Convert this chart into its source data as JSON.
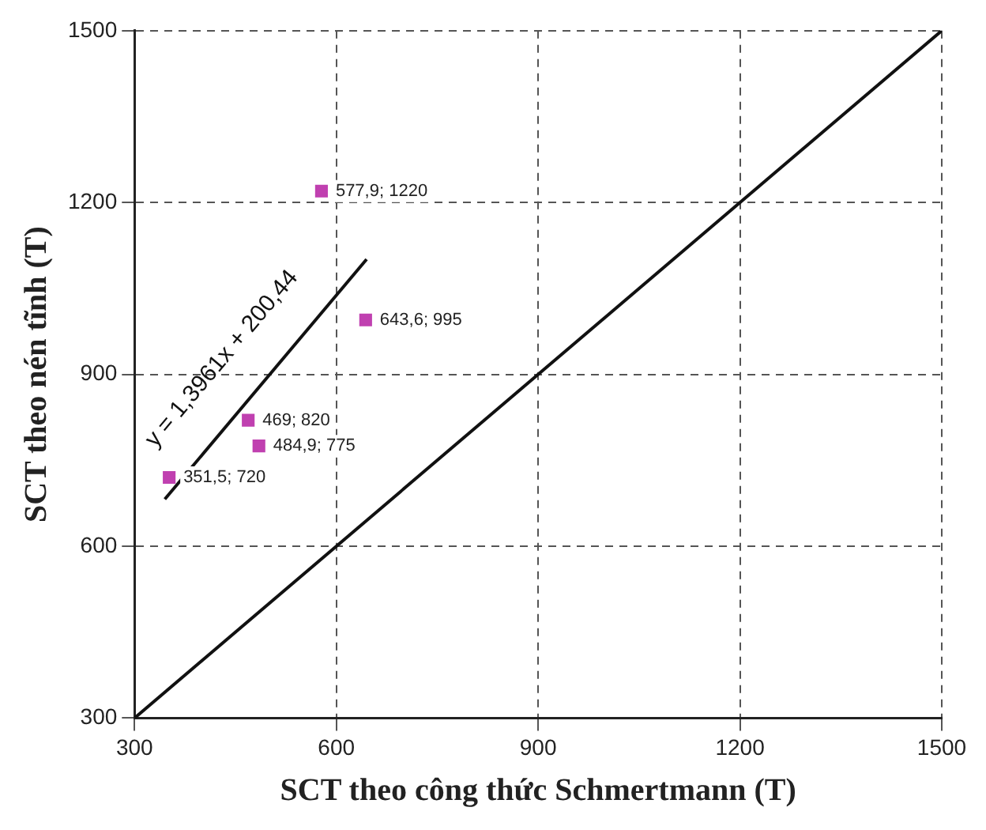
{
  "chart_data": {
    "type": "scatter",
    "xlabel": "SCT theo công thức Schmertmann (T)",
    "ylabel": "SCT theo nén tĩnh (T)",
    "xlim": [
      300,
      1500
    ],
    "xticks": [
      300,
      600,
      900,
      1200,
      1500
    ],
    "ylim": [
      300,
      1500
    ],
    "yticks": [
      300,
      600,
      900,
      1200,
      1500
    ],
    "grid": true,
    "series": [
      {
        "marker": "square",
        "color": "#c040b0",
        "x": [
          351.5,
          469,
          484.9,
          577.9,
          643.6
        ],
        "values": [
          720,
          820,
          775,
          1220,
          995
        ],
        "value_labels": [
          "351,5; 720",
          "469; 820",
          "484,9; 775",
          "577,9; 1220",
          "643,6; 995"
        ]
      },
      {
        "type": "line",
        "marker": "none",
        "color": "#111111",
        "x": [
          345,
          645
        ],
        "values": [
          682,
          1101
        ]
      },
      {
        "type": "line",
        "marker": "none",
        "color": "#111111",
        "x": [
          300,
          1500
        ],
        "values": [
          300,
          1500
        ]
      }
    ],
    "annotations": [
      "y = 1,3961x + 200,44"
    ]
  }
}
